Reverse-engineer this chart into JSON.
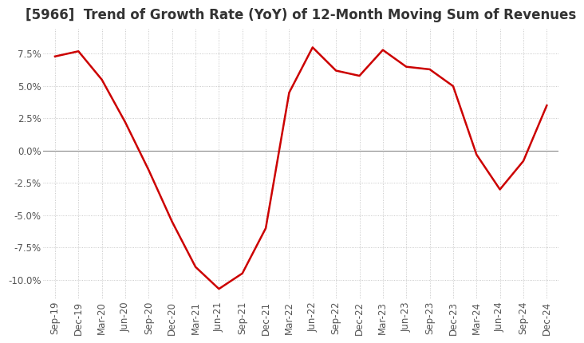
{
  "title": "[5966]  Trend of Growth Rate (YoY) of 12-Month Moving Sum of Revenues",
  "title_fontsize": 12,
  "line_color": "#cc0000",
  "background_color": "#ffffff",
  "ylim": [
    -11.5,
    9.5
  ],
  "yticks": [
    7.5,
    5.0,
    2.5,
    0.0,
    -2.5,
    -5.0,
    -7.5,
    -10.0
  ],
  "x_labels": [
    "Sep-19",
    "Dec-19",
    "Mar-20",
    "Jun-20",
    "Sep-20",
    "Dec-20",
    "Mar-21",
    "Jun-21",
    "Sep-21",
    "Dec-21",
    "Mar-22",
    "Jun-22",
    "Sep-22",
    "Dec-22",
    "Mar-23",
    "Jun-23",
    "Sep-23",
    "Dec-23",
    "Mar-24",
    "Jun-24",
    "Sep-24",
    "Dec-24"
  ],
  "values": [
    7.3,
    7.7,
    5.5,
    2.2,
    -1.5,
    -5.5,
    -9.0,
    -10.7,
    -9.5,
    -6.0,
    4.5,
    8.0,
    6.2,
    5.8,
    7.8,
    6.5,
    6.3,
    5.0,
    -0.3,
    -3.0,
    -0.8,
    3.5
  ],
  "grid_color": "#bbbbbb",
  "zero_line_color": "#888888",
  "tick_color": "#555555",
  "tick_fontsize": 8.5
}
